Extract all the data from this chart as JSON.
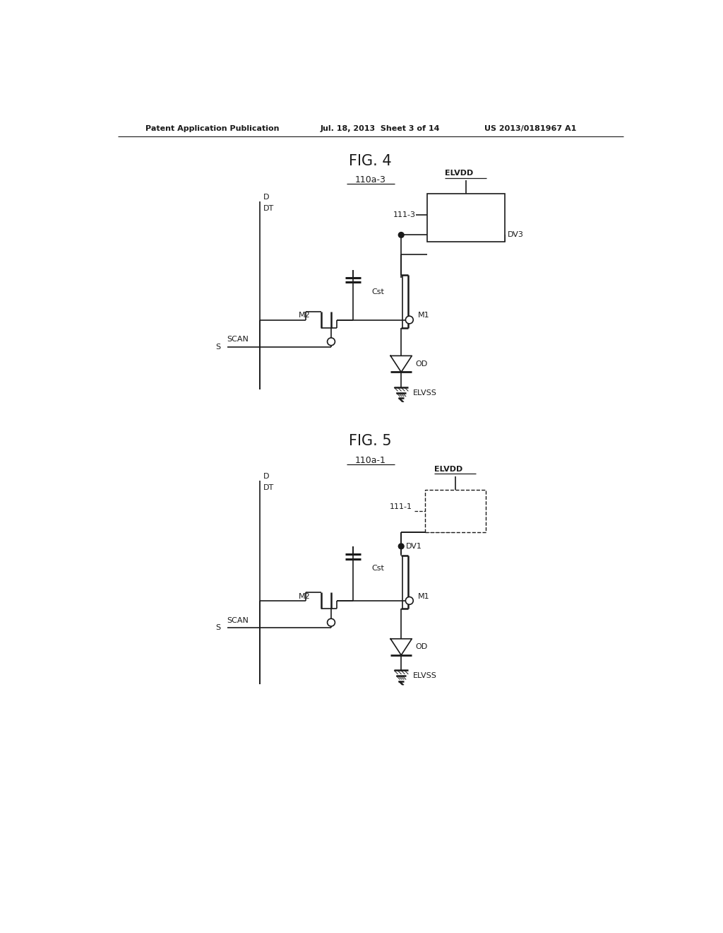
{
  "bg_color": "#ffffff",
  "line_color": "#1a1a1a",
  "header_text_left": "Patent Application Publication",
  "header_text_mid": "Jul. 18, 2013  Sheet 3 of 14",
  "header_text_right": "US 2013/0181967 A1",
  "fig4_title": "FIG. 4",
  "fig4_subtitle": "110a-3",
  "fig5_title": "FIG. 5",
  "fig5_subtitle": "110a-1",
  "page_width": 10.24,
  "page_height": 13.2
}
